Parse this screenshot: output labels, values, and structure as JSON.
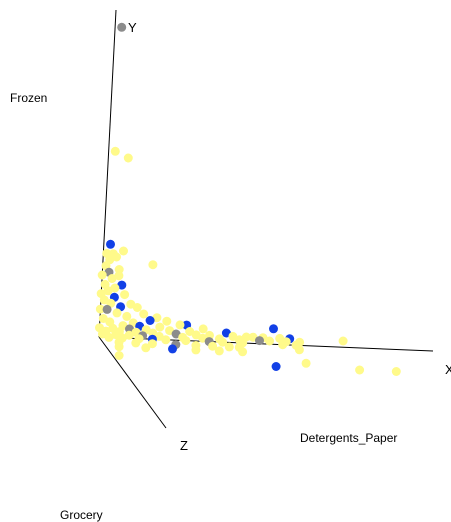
{
  "chart_data": {
    "type": "scatter",
    "projection": "3d",
    "axes": {
      "x": {
        "letter": "X",
        "dimension": "Detergents_Paper"
      },
      "y": {
        "letter": "Y",
        "dimension": "Frozen"
      },
      "z": {
        "letter": "Z",
        "dimension": "Grocery"
      }
    },
    "colors": {
      "yellow": "#fffa8a",
      "blue": "#1240e6",
      "grey": "#8c8c8c"
    },
    "points": [
      {
        "x": 0.02,
        "y": 1.0,
        "z": 0.0,
        "c": "grey"
      },
      {
        "x": 0.02,
        "y": 0.6,
        "z": 0.0,
        "c": "yellow"
      },
      {
        "x": 0.06,
        "y": 0.58,
        "z": 0.0,
        "c": "yellow"
      },
      {
        "x": 0.02,
        "y": 0.3,
        "z": 0.0,
        "c": "blue"
      },
      {
        "x": 0.06,
        "y": 0.28,
        "z": 0.0,
        "c": "yellow"
      },
      {
        "x": 0.03,
        "y": 0.27,
        "z": 0.0,
        "c": "yellow"
      },
      {
        "x": 0.01,
        "y": 0.27,
        "z": 0.0,
        "c": "yellow"
      },
      {
        "x": 0.04,
        "y": 0.26,
        "z": 0.0,
        "c": "yellow"
      },
      {
        "x": 0.02,
        "y": 0.25,
        "z": 0.0,
        "c": "yellow"
      },
      {
        "x": 0.15,
        "y": 0.24,
        "z": 0.0,
        "c": "yellow"
      },
      {
        "x": 0.01,
        "y": 0.23,
        "z": 0.0,
        "c": "yellow"
      },
      {
        "x": 0.05,
        "y": 0.22,
        "z": 0.0,
        "c": "yellow"
      },
      {
        "x": 0.02,
        "y": 0.21,
        "z": 0.0,
        "c": "grey"
      },
      {
        "x": 0.05,
        "y": 0.2,
        "z": 0.0,
        "c": "yellow"
      },
      {
        "x": 0.0,
        "y": 0.2,
        "z": 0.0,
        "c": "yellow"
      },
      {
        "x": 0.03,
        "y": 0.19,
        "z": 0.0,
        "c": "yellow"
      },
      {
        "x": 0.06,
        "y": 0.17,
        "z": 0.0,
        "c": "blue"
      },
      {
        "x": 0.01,
        "y": 0.17,
        "z": 0.0,
        "c": "yellow"
      },
      {
        "x": 0.04,
        "y": 0.16,
        "z": 0.0,
        "c": "yellow"
      },
      {
        "x": 0.02,
        "y": 0.15,
        "z": 0.0,
        "c": "yellow"
      },
      {
        "x": 0.0,
        "y": 0.14,
        "z": 0.0,
        "c": "yellow"
      },
      {
        "x": 0.07,
        "y": 0.14,
        "z": 0.0,
        "c": "yellow"
      },
      {
        "x": 0.04,
        "y": 0.13,
        "z": 0.0,
        "c": "blue"
      },
      {
        "x": 0.01,
        "y": 0.12,
        "z": 0.0,
        "c": "yellow"
      },
      {
        "x": 0.09,
        "y": 0.11,
        "z": 0.0,
        "c": "yellow"
      },
      {
        "x": 0.03,
        "y": 0.11,
        "z": 0.0,
        "c": "yellow"
      },
      {
        "x": 0.06,
        "y": 0.1,
        "z": 0.0,
        "c": "blue"
      },
      {
        "x": 0.11,
        "y": 0.1,
        "z": 0.0,
        "c": "yellow"
      },
      {
        "x": 0.0,
        "y": 0.09,
        "z": 0.0,
        "c": "yellow"
      },
      {
        "x": 0.02,
        "y": 0.09,
        "z": 0.0,
        "c": "grey"
      },
      {
        "x": 0.05,
        "y": 0.08,
        "z": 0.0,
        "c": "yellow"
      },
      {
        "x": 0.13,
        "y": 0.08,
        "z": 0.0,
        "c": "yellow"
      },
      {
        "x": 0.17,
        "y": 0.07,
        "z": 0.0,
        "c": "yellow"
      },
      {
        "x": 0.08,
        "y": 0.07,
        "z": 0.0,
        "c": "yellow"
      },
      {
        "x": 0.01,
        "y": 0.06,
        "z": 0.0,
        "c": "yellow"
      },
      {
        "x": 0.15,
        "y": 0.06,
        "z": 0.0,
        "c": "blue"
      },
      {
        "x": 0.2,
        "y": 0.06,
        "z": 0.0,
        "c": "yellow"
      },
      {
        "x": 0.03,
        "y": 0.05,
        "z": 0.0,
        "c": "yellow"
      },
      {
        "x": 0.1,
        "y": 0.05,
        "z": 0.0,
        "c": "yellow"
      },
      {
        "x": 0.26,
        "y": 0.05,
        "z": 0.0,
        "c": "blue"
      },
      {
        "x": 0.24,
        "y": 0.05,
        "z": 0.0,
        "c": "yellow"
      },
      {
        "x": 0.52,
        "y": 0.05,
        "z": 0.0,
        "c": "blue"
      },
      {
        "x": 0.07,
        "y": 0.04,
        "z": 0.0,
        "c": "yellow"
      },
      {
        "x": 0.12,
        "y": 0.04,
        "z": 0.0,
        "c": "blue"
      },
      {
        "x": 0.18,
        "y": 0.04,
        "z": 0.0,
        "c": "yellow"
      },
      {
        "x": 0.31,
        "y": 0.04,
        "z": 0.0,
        "c": "yellow"
      },
      {
        "x": 0.0,
        "y": 0.03,
        "z": 0.0,
        "c": "yellow"
      },
      {
        "x": 0.04,
        "y": 0.03,
        "z": 0.0,
        "c": "yellow"
      },
      {
        "x": 0.09,
        "y": 0.03,
        "z": 0.0,
        "c": "grey"
      },
      {
        "x": 0.14,
        "y": 0.03,
        "z": 0.0,
        "c": "yellow"
      },
      {
        "x": 0.21,
        "y": 0.03,
        "z": 0.0,
        "c": "yellow"
      },
      {
        "x": 0.27,
        "y": 0.03,
        "z": 0.0,
        "c": "yellow"
      },
      {
        "x": 0.38,
        "y": 0.03,
        "z": 0.0,
        "c": "blue"
      },
      {
        "x": 0.46,
        "y": 0.02,
        "z": 0.0,
        "c": "yellow"
      },
      {
        "x": 0.49,
        "y": 0.02,
        "z": 0.0,
        "c": "yellow"
      },
      {
        "x": 0.54,
        "y": 0.02,
        "z": 0.0,
        "c": "yellow"
      },
      {
        "x": 0.57,
        "y": 0.02,
        "z": 0.0,
        "c": "blue"
      },
      {
        "x": 0.73,
        "y": 0.02,
        "z": 0.0,
        "c": "yellow"
      },
      {
        "x": 0.02,
        "y": 0.02,
        "z": 0.0,
        "c": "yellow"
      },
      {
        "x": 0.06,
        "y": 0.02,
        "z": 0.0,
        "c": "yellow"
      },
      {
        "x": 0.11,
        "y": 0.02,
        "z": 0.0,
        "c": "yellow"
      },
      {
        "x": 0.16,
        "y": 0.02,
        "z": 0.0,
        "c": "yellow"
      },
      {
        "x": 0.23,
        "y": 0.02,
        "z": 0.0,
        "c": "grey"
      },
      {
        "x": 0.29,
        "y": 0.02,
        "z": 0.0,
        "c": "yellow"
      },
      {
        "x": 0.33,
        "y": 0.02,
        "z": 0.0,
        "c": "yellow"
      },
      {
        "x": 0.4,
        "y": 0.02,
        "z": 0.0,
        "c": "yellow"
      },
      {
        "x": 0.44,
        "y": 0.02,
        "z": 0.0,
        "c": "yellow"
      },
      {
        "x": 0.01,
        "y": 0.01,
        "z": 0.0,
        "c": "yellow"
      },
      {
        "x": 0.05,
        "y": 0.01,
        "z": 0.0,
        "c": "yellow"
      },
      {
        "x": 0.09,
        "y": 0.01,
        "z": 0.0,
        "c": "yellow"
      },
      {
        "x": 0.13,
        "y": 0.01,
        "z": 0.0,
        "c": "grey"
      },
      {
        "x": 0.18,
        "y": 0.01,
        "z": 0.0,
        "c": "yellow"
      },
      {
        "x": 0.25,
        "y": 0.01,
        "z": 0.0,
        "c": "yellow"
      },
      {
        "x": 0.31,
        "y": 0.01,
        "z": 0.0,
        "c": "yellow"
      },
      {
        "x": 0.36,
        "y": 0.01,
        "z": 0.0,
        "c": "yellow"
      },
      {
        "x": 0.42,
        "y": 0.01,
        "z": 0.0,
        "c": "yellow"
      },
      {
        "x": 0.48,
        "y": 0.01,
        "z": 0.0,
        "c": "grey"
      },
      {
        "x": 0.51,
        "y": 0.01,
        "z": 0.0,
        "c": "yellow"
      },
      {
        "x": 0.56,
        "y": 0.01,
        "z": 0.0,
        "c": "yellow"
      },
      {
        "x": 0.6,
        "y": 0.01,
        "z": 0.0,
        "c": "yellow"
      },
      {
        "x": 0.03,
        "y": 0.0,
        "z": 0.0,
        "c": "yellow"
      },
      {
        "x": 0.07,
        "y": 0.0,
        "z": 0.0,
        "c": "yellow"
      },
      {
        "x": 0.12,
        "y": 0.0,
        "z": 0.0,
        "c": "yellow"
      },
      {
        "x": 0.16,
        "y": 0.0,
        "z": 0.0,
        "c": "blue"
      },
      {
        "x": 0.2,
        "y": 0.0,
        "z": 0.0,
        "c": "yellow"
      },
      {
        "x": 0.26,
        "y": 0.0,
        "z": 0.0,
        "c": "yellow"
      },
      {
        "x": 0.33,
        "y": 0.0,
        "z": 0.0,
        "c": "grey"
      },
      {
        "x": 0.37,
        "y": 0.0,
        "z": 0.0,
        "c": "yellow"
      },
      {
        "x": 0.43,
        "y": 0.0,
        "z": 0.0,
        "c": "yellow"
      },
      {
        "x": 0.55,
        "y": 0.0,
        "z": 0.0,
        "c": "yellow"
      },
      {
        "x": 0.59,
        "y": 0.0,
        "z": 0.0,
        "c": "yellow"
      },
      {
        "x": 0.05,
        "y": 0.0,
        "z": 0.05,
        "c": "yellow"
      },
      {
        "x": 0.1,
        "y": 0.0,
        "z": 0.05,
        "c": "yellow"
      },
      {
        "x": 0.15,
        "y": 0.0,
        "z": 0.05,
        "c": "yellow"
      },
      {
        "x": 0.22,
        "y": 0.0,
        "z": 0.05,
        "c": "grey"
      },
      {
        "x": 0.28,
        "y": 0.0,
        "z": 0.05,
        "c": "yellow"
      },
      {
        "x": 0.33,
        "y": 0.0,
        "z": 0.05,
        "c": "yellow"
      },
      {
        "x": 0.38,
        "y": 0.0,
        "z": 0.05,
        "c": "yellow"
      },
      {
        "x": 0.41,
        "y": 0.0,
        "z": 0.05,
        "c": "yellow"
      },
      {
        "x": 0.59,
        "y": 0.0,
        "z": 0.05,
        "c": "yellow"
      },
      {
        "x": 0.04,
        "y": 0.0,
        "z": 0.1,
        "c": "yellow"
      },
      {
        "x": 0.12,
        "y": 0.0,
        "z": 0.1,
        "c": "yellow"
      },
      {
        "x": 0.2,
        "y": 0.0,
        "z": 0.1,
        "c": "blue"
      },
      {
        "x": 0.27,
        "y": 0.0,
        "z": 0.1,
        "c": "yellow"
      },
      {
        "x": 0.34,
        "y": 0.0,
        "z": 0.1,
        "c": "yellow"
      },
      {
        "x": 0.41,
        "y": 0.0,
        "z": 0.1,
        "c": "yellow"
      },
      {
        "x": 0.02,
        "y": 0.0,
        "z": 0.2,
        "c": "yellow"
      },
      {
        "x": 0.58,
        "y": 0.0,
        "z": 0.2,
        "c": "yellow"
      },
      {
        "x": 0.48,
        "y": 0.0,
        "z": 0.25,
        "c": "blue"
      },
      {
        "x": 0.73,
        "y": 0.0,
        "z": 0.25,
        "c": "yellow"
      },
      {
        "x": 0.84,
        "y": 0.0,
        "z": 0.25,
        "c": "yellow"
      }
    ]
  }
}
